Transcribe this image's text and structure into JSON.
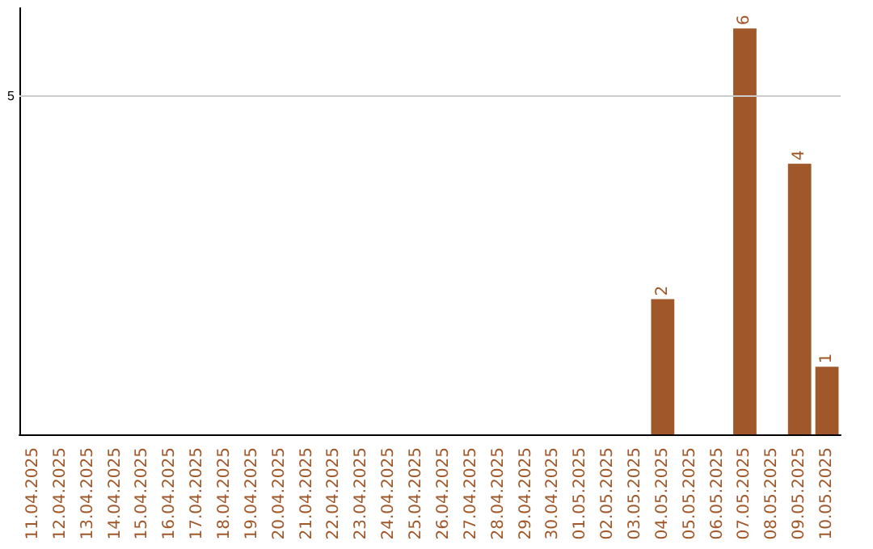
{
  "chart_data": {
    "type": "bar",
    "categories": [
      "11.04.2025",
      "12.04.2025",
      "13.04.2025",
      "14.04.2025",
      "15.04.2025",
      "16.04.2025",
      "17.04.2025",
      "18.04.2025",
      "19.04.2025",
      "20.04.2025",
      "21.04.2025",
      "22.04.2025",
      "23.04.2025",
      "24.04.2025",
      "25.04.2025",
      "26.04.2025",
      "27.04.2025",
      "28.04.2025",
      "29.04.2025",
      "30.04.2025",
      "01.05.2025",
      "02.05.2025",
      "03.05.2025",
      "04.05.2025",
      "05.05.2025",
      "06.05.2025",
      "07.05.2025",
      "08.05.2025",
      "09.05.2025",
      "10.05.2025"
    ],
    "values": [
      null,
      null,
      null,
      null,
      null,
      null,
      null,
      null,
      null,
      null,
      null,
      null,
      null,
      null,
      null,
      null,
      null,
      null,
      null,
      null,
      null,
      null,
      null,
      2,
      null,
      null,
      6,
      null,
      4,
      1
    ],
    "value_labels": [
      null,
      null,
      null,
      null,
      null,
      null,
      null,
      null,
      null,
      null,
      null,
      null,
      null,
      null,
      null,
      null,
      null,
      null,
      null,
      null,
      null,
      null,
      null,
      "2",
      null,
      null,
      "6",
      null,
      "4",
      "1"
    ],
    "color": "#a0582a",
    "ylim": [
      0,
      6.3
    ],
    "ref_lines": [
      {
        "axis": "y",
        "value": 5,
        "label": "5",
        "color": "#cccccc"
      }
    ]
  }
}
